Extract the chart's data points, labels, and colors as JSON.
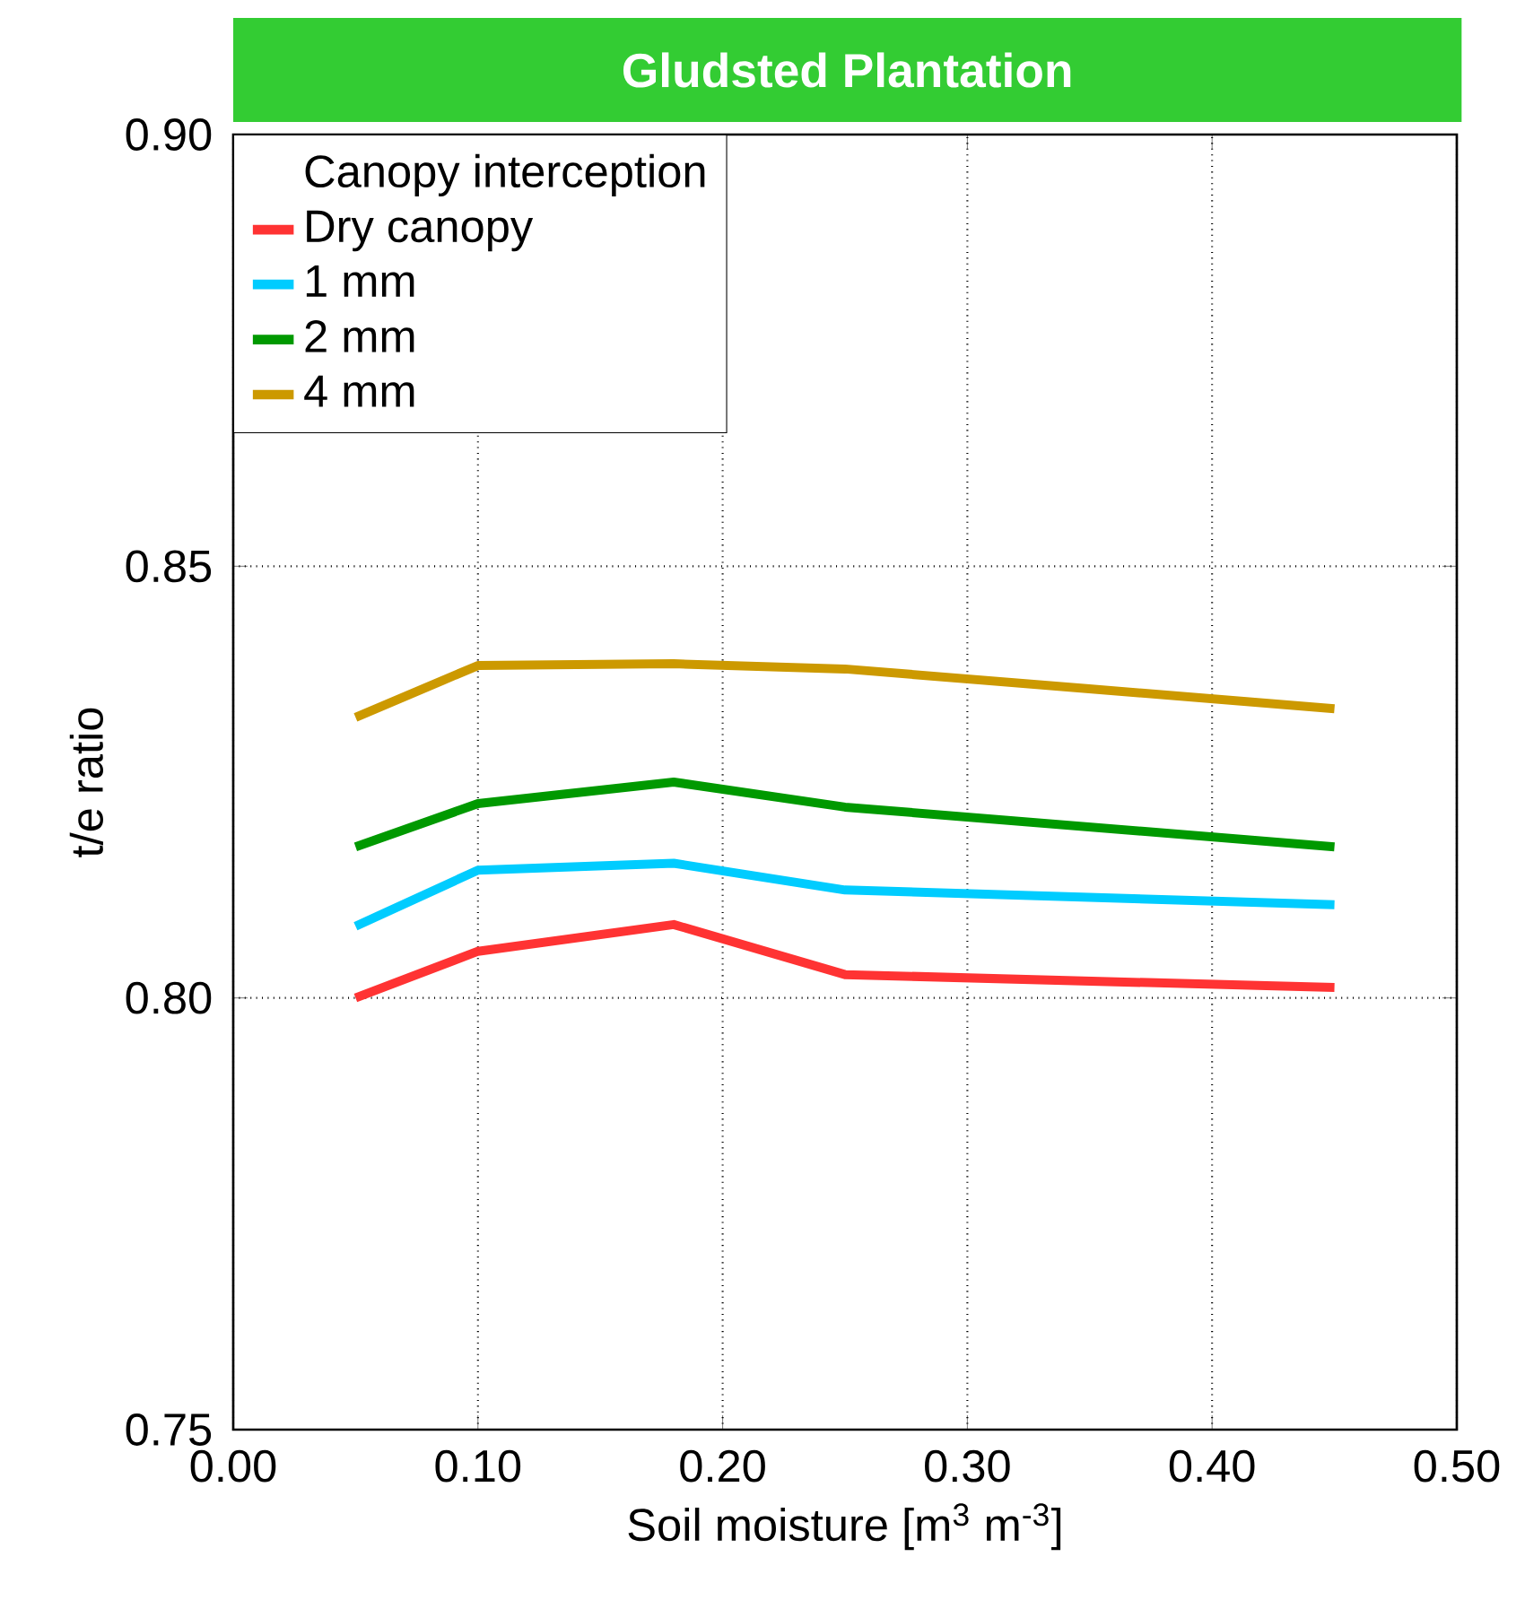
{
  "chart_data": {
    "type": "line",
    "title": "Gludsted Plantation",
    "xlabel": "Soil moisture [m$^{3}$ m$^{-3}$]",
    "ylabel": "t/e ratio",
    "legend_title": "Canopy interception",
    "x": [
      0.05,
      0.1,
      0.18,
      0.25,
      0.45
    ],
    "series": [
      {
        "name": "Dry canopy",
        "color": "#ff3333",
        "values": [
          0.8,
          0.8054,
          0.8085,
          0.8027,
          0.8012
        ]
      },
      {
        "name": "1 mm",
        "color": "#00ccff",
        "values": [
          0.8083,
          0.8148,
          0.8156,
          0.8125,
          0.8108
        ]
      },
      {
        "name": "2 mm",
        "color": "#009900",
        "values": [
          0.8175,
          0.8225,
          0.825,
          0.8221,
          0.8175
        ]
      },
      {
        "name": "4 mm",
        "color": "#cc9900",
        "values": [
          0.8325,
          0.8385,
          0.8387,
          0.8381,
          0.8335
        ]
      }
    ],
    "xlim": [
      0,
      0.5
    ],
    "ylim": [
      0.75,
      0.9
    ],
    "xticks": [
      {
        "value": 0,
        "label": "0.00"
      },
      {
        "value": 0.1,
        "label": "0.10"
      },
      {
        "value": 0.2,
        "label": "0.20"
      },
      {
        "value": 0.3,
        "label": "0.30"
      },
      {
        "value": 0.4,
        "label": "0.40"
      },
      {
        "value": 0.5,
        "label": "0.50"
      }
    ],
    "yticks": [
      {
        "value": 0.75,
        "label": "0.75"
      },
      {
        "value": 0.8,
        "label": "0.80"
      },
      {
        "value": 0.85,
        "label": "0.85"
      },
      {
        "value": 0.9,
        "label": "0.90"
      }
    ],
    "grid": true,
    "legend": "top left",
    "marker": "none",
    "line_style": "solid"
  }
}
